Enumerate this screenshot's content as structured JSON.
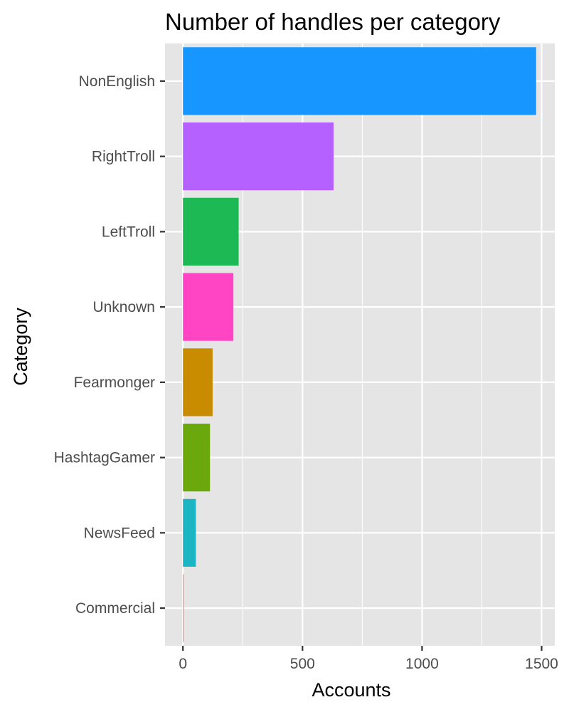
{
  "chart_data": {
    "type": "bar",
    "orientation": "horizontal",
    "title": "Number of handles per category",
    "xlabel": "Accounts",
    "ylabel": "Category",
    "categories": [
      "Commercial",
      "NewsFeed",
      "HashtagGamer",
      "Fearmonger",
      "Unknown",
      "LeftTroll",
      "RightTroll",
      "NonEnglish"
    ],
    "values": [
      3,
      54,
      113,
      124,
      211,
      233,
      630,
      1477
    ],
    "colors": [
      "#F8766D",
      "#1CB5C4",
      "#6BA80C",
      "#C98B00",
      "#FF44C4",
      "#1CB954",
      "#B561FF",
      "#1896FF"
    ],
    "xlim": [
      -75,
      1555
    ],
    "xticks": [
      0,
      500,
      1000,
      1500
    ],
    "xtick_labels": [
      "0",
      "500",
      "1000",
      "1500"
    ],
    "panel_background": "#E5E5E5",
    "grid": true,
    "legend": "none"
  }
}
